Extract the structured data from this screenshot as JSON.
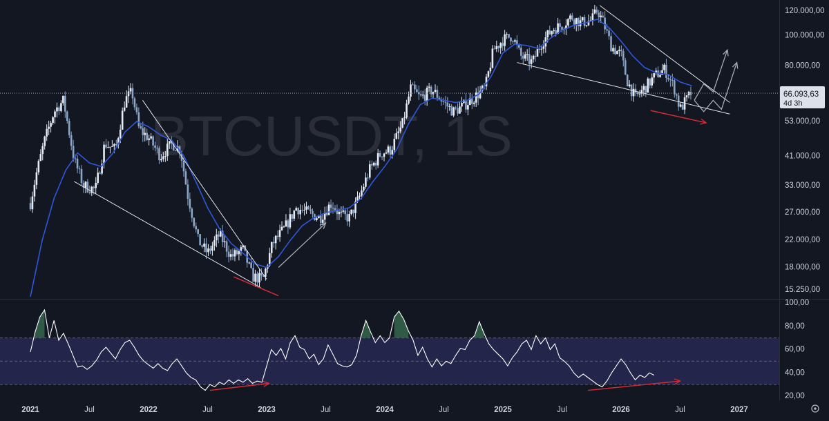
{
  "colors": {
    "background": "#131722",
    "up_candle": "#e6ecf5",
    "down_candle": "#8ba6c9",
    "moving_average": "#2f57d8",
    "trendline": "#e6e6e6",
    "projection": "#a8acb5",
    "divergence": "#d62b36",
    "rsi_line": "#ffffff",
    "rsi_band": "#2b2b58",
    "rsi_overbought_fill": "#36654c",
    "text": "#d1d4dc",
    "current_price_tag": "#dde2ea"
  },
  "watermark": "BTCUSDT, 1S",
  "current_price": {
    "value": "66.093,63",
    "countdown": "4d 3h",
    "level": 66093.63
  },
  "chart_data": [
    {
      "type": "candlestick",
      "scale": "log",
      "x_axis_labels": [
        "2021",
        "Jul",
        "2022",
        "Jul",
        "2023",
        "Jul",
        "2024",
        "Jul",
        "2025",
        "Jul",
        "2026",
        "Jul",
        "2027"
      ],
      "x_range": [
        2021.0,
        2027.0
      ],
      "y_ticks": [
        {
          "value": 120000,
          "label": "120.000,00"
        },
        {
          "value": 100000,
          "label": "100.000,00"
        },
        {
          "value": 80000,
          "label": "80.000,00"
        },
        {
          "value": 53000,
          "label": "53.000,00"
        },
        {
          "value": 41000,
          "label": "41.000,00"
        },
        {
          "value": 33000,
          "label": "33.000,00"
        },
        {
          "value": 27000,
          "label": "27.000,00"
        },
        {
          "value": 22000,
          "label": "22.000,00"
        },
        {
          "value": 18000,
          "label": "18.000,00"
        },
        {
          "value": 15250,
          "label": "15.250,00"
        }
      ],
      "price_path": [
        [
          2021.0,
          29000
        ],
        [
          2021.05,
          36000
        ],
        [
          2021.12,
          46000
        ],
        [
          2021.2,
          57000
        ],
        [
          2021.28,
          62000
        ],
        [
          2021.37,
          40000
        ],
        [
          2021.45,
          33000
        ],
        [
          2021.55,
          32000
        ],
        [
          2021.63,
          45000
        ],
        [
          2021.72,
          43000
        ],
        [
          2021.8,
          62000
        ],
        [
          2021.86,
          66000
        ],
        [
          2021.92,
          50000
        ],
        [
          2022.0,
          47000
        ],
        [
          2022.1,
          41000
        ],
        [
          2022.2,
          45000
        ],
        [
          2022.27,
          43000
        ],
        [
          2022.33,
          31000
        ],
        [
          2022.42,
          22000
        ],
        [
          2022.5,
          20000
        ],
        [
          2022.6,
          23000
        ],
        [
          2022.7,
          19500
        ],
        [
          2022.8,
          20500
        ],
        [
          2022.88,
          16800
        ],
        [
          2022.97,
          16500
        ],
        [
          2023.05,
          21500
        ],
        [
          2023.15,
          24000
        ],
        [
          2023.25,
          28000
        ],
        [
          2023.35,
          27000
        ],
        [
          2023.45,
          26000
        ],
        [
          2023.55,
          29000
        ],
        [
          2023.62,
          26500
        ],
        [
          2023.7,
          26000
        ],
        [
          2023.78,
          30000
        ],
        [
          2023.87,
          37000
        ],
        [
          2023.97,
          42000
        ],
        [
          2024.05,
          43000
        ],
        [
          2024.15,
          52000
        ],
        [
          2024.22,
          68000
        ],
        [
          2024.3,
          63000
        ],
        [
          2024.4,
          67000
        ],
        [
          2024.5,
          61000
        ],
        [
          2024.58,
          57000
        ],
        [
          2024.65,
          59000
        ],
        [
          2024.75,
          63000
        ],
        [
          2024.85,
          68000
        ],
        [
          2024.92,
          90000
        ],
        [
          2025.0,
          97000
        ],
        [
          2025.08,
          100000
        ],
        [
          2025.15,
          86000
        ],
        [
          2025.25,
          82000
        ],
        [
          2025.32,
          94000
        ],
        [
          2025.42,
          105000
        ],
        [
          2025.5,
          108000
        ],
        [
          2025.58,
          115000
        ],
        [
          2025.66,
          110000
        ],
        [
          2025.75,
          112000
        ],
        [
          2025.8,
          121000
        ],
        [
          2025.85,
          110000
        ],
        [
          2025.92,
          92000
        ],
        [
          2026.0,
          87000
        ],
        [
          2026.05,
          72000
        ],
        [
          2026.12,
          63000
        ],
        [
          2026.2,
          68000
        ],
        [
          2026.3,
          75000
        ],
        [
          2026.37,
          78000
        ],
        [
          2026.45,
          68000
        ],
        [
          2026.5,
          58000
        ],
        [
          2026.55,
          62000
        ],
        [
          2026.6,
          66093
        ]
      ],
      "moving_average": [
        [
          2021.0,
          14500
        ],
        [
          2021.1,
          22000
        ],
        [
          2021.2,
          30000
        ],
        [
          2021.3,
          37000
        ],
        [
          2021.4,
          42000
        ],
        [
          2021.5,
          39000
        ],
        [
          2021.6,
          38000
        ],
        [
          2021.7,
          42000
        ],
        [
          2021.8,
          49000
        ],
        [
          2021.9,
          53000
        ],
        [
          2022.0,
          51000
        ],
        [
          2022.1,
          48000
        ],
        [
          2022.2,
          46000
        ],
        [
          2022.3,
          41000
        ],
        [
          2022.4,
          34000
        ],
        [
          2022.5,
          28000
        ],
        [
          2022.6,
          24000
        ],
        [
          2022.7,
          21500
        ],
        [
          2022.8,
          20000
        ],
        [
          2022.9,
          18500
        ],
        [
          2023.0,
          18000
        ],
        [
          2023.1,
          19500
        ],
        [
          2023.2,
          22000
        ],
        [
          2023.3,
          24500
        ],
        [
          2023.4,
          26000
        ],
        [
          2023.5,
          27000
        ],
        [
          2023.6,
          27500
        ],
        [
          2023.7,
          28000
        ],
        [
          2023.8,
          30000
        ],
        [
          2023.9,
          34000
        ],
        [
          2024.0,
          38000
        ],
        [
          2024.1,
          43000
        ],
        [
          2024.2,
          52000
        ],
        [
          2024.3,
          60000
        ],
        [
          2024.4,
          63000
        ],
        [
          2024.5,
          62000
        ],
        [
          2024.6,
          61000
        ],
        [
          2024.7,
          62000
        ],
        [
          2024.8,
          65000
        ],
        [
          2024.9,
          74000
        ],
        [
          2025.0,
          88000
        ],
        [
          2025.1,
          94000
        ],
        [
          2025.2,
          93000
        ],
        [
          2025.3,
          91000
        ],
        [
          2025.4,
          98000
        ],
        [
          2025.5,
          104000
        ],
        [
          2025.6,
          108000
        ],
        [
          2025.7,
          110000
        ],
        [
          2025.8,
          113000
        ],
        [
          2025.9,
          106000
        ],
        [
          2026.0,
          96000
        ],
        [
          2026.1,
          86000
        ],
        [
          2026.2,
          79000
        ],
        [
          2026.3,
          76000
        ],
        [
          2026.4,
          75000
        ],
        [
          2026.5,
          71000
        ],
        [
          2026.6,
          69000
        ]
      ],
      "trendlines": [
        {
          "from": [
            2021.37,
            34000
          ],
          "to": [
            2022.95,
            15500
          ]
        },
        {
          "from": [
            2021.95,
            62000
          ],
          "to": [
            2023.0,
            16500
          ]
        },
        {
          "from": [
            2025.12,
            82000
          ],
          "to": [
            2026.92,
            56000
          ]
        },
        {
          "from": [
            2025.82,
            125000
          ],
          "to": [
            2026.92,
            61000
          ]
        }
      ],
      "projections": [
        {
          "from": [
            2023.1,
            18000
          ],
          "to": [
            2023.5,
            25000
          ]
        },
        {
          "points": [
            [
              2026.62,
              62000
            ],
            [
              2026.7,
              70000
            ],
            [
              2026.78,
              66000
            ],
            [
              2026.9,
              90000
            ]
          ]
        },
        {
          "points": [
            [
              2026.62,
              62000
            ],
            [
              2026.7,
              57000
            ],
            [
              2026.78,
              62000
            ],
            [
              2026.85,
              58000
            ],
            [
              2026.98,
              82000
            ]
          ]
        }
      ],
      "divergences": [
        {
          "from": [
            2022.72,
            16800
          ],
          "to": [
            2023.1,
            14600
          ]
        },
        {
          "from": [
            2026.25,
            57500
          ],
          "to": [
            2026.72,
            52500
          ]
        }
      ]
    },
    {
      "type": "line",
      "y_ticks": [
        {
          "value": 100,
          "label": "100,00"
        },
        {
          "value": 80,
          "label": "80,00"
        },
        {
          "value": 60,
          "label": "60,00"
        },
        {
          "value": 40,
          "label": "40,00"
        },
        {
          "value": 20,
          "label": "20,00"
        }
      ],
      "ylim": [
        20,
        100
      ],
      "band": [
        30,
        70
      ],
      "midline": 50,
      "values": [
        [
          2021.0,
          58
        ],
        [
          2021.04,
          75
        ],
        [
          2021.08,
          88
        ],
        [
          2021.12,
          94
        ],
        [
          2021.16,
          70
        ],
        [
          2021.2,
          85
        ],
        [
          2021.24,
          68
        ],
        [
          2021.28,
          74
        ],
        [
          2021.32,
          65
        ],
        [
          2021.36,
          55
        ],
        [
          2021.4,
          45
        ],
        [
          2021.44,
          46
        ],
        [
          2021.48,
          43
        ],
        [
          2021.52,
          46
        ],
        [
          2021.56,
          51
        ],
        [
          2021.6,
          58
        ],
        [
          2021.64,
          62
        ],
        [
          2021.68,
          57
        ],
        [
          2021.72,
          52
        ],
        [
          2021.76,
          60
        ],
        [
          2021.8,
          66
        ],
        [
          2021.84,
          68
        ],
        [
          2021.88,
          62
        ],
        [
          2021.92,
          55
        ],
        [
          2021.96,
          50
        ],
        [
          2022.0,
          47
        ],
        [
          2022.04,
          44
        ],
        [
          2022.08,
          48
        ],
        [
          2022.12,
          44
        ],
        [
          2022.16,
          42
        ],
        [
          2022.2,
          48
        ],
        [
          2022.24,
          52
        ],
        [
          2022.28,
          46
        ],
        [
          2022.32,
          40
        ],
        [
          2022.36,
          36
        ],
        [
          2022.4,
          34
        ],
        [
          2022.44,
          28
        ],
        [
          2022.48,
          25
        ],
        [
          2022.52,
          30
        ],
        [
          2022.56,
          28
        ],
        [
          2022.6,
          32
        ],
        [
          2022.64,
          30
        ],
        [
          2022.68,
          34
        ],
        [
          2022.72,
          31
        ],
        [
          2022.76,
          34
        ],
        [
          2022.8,
          32
        ],
        [
          2022.84,
          35
        ],
        [
          2022.88,
          31
        ],
        [
          2022.92,
          33
        ],
        [
          2022.96,
          32
        ],
        [
          2023.0,
          46
        ],
        [
          2023.04,
          60
        ],
        [
          2023.08,
          55
        ],
        [
          2023.12,
          61
        ],
        [
          2023.16,
          52
        ],
        [
          2023.2,
          66
        ],
        [
          2023.24,
          72
        ],
        [
          2023.28,
          62
        ],
        [
          2023.32,
          60
        ],
        [
          2023.36,
          52
        ],
        [
          2023.4,
          56
        ],
        [
          2023.44,
          47
        ],
        [
          2023.48,
          52
        ],
        [
          2023.52,
          64
        ],
        [
          2023.56,
          56
        ],
        [
          2023.6,
          48
        ],
        [
          2023.64,
          46
        ],
        [
          2023.68,
          45
        ],
        [
          2023.72,
          47
        ],
        [
          2023.76,
          55
        ],
        [
          2023.8,
          72
        ],
        [
          2023.84,
          85
        ],
        [
          2023.88,
          75
        ],
        [
          2023.92,
          66
        ],
        [
          2023.96,
          72
        ],
        [
          2024.0,
          66
        ],
        [
          2024.04,
          70
        ],
        [
          2024.08,
          88
        ],
        [
          2024.12,
          93
        ],
        [
          2024.16,
          86
        ],
        [
          2024.2,
          76
        ],
        [
          2024.24,
          68
        ],
        [
          2024.28,
          55
        ],
        [
          2024.32,
          62
        ],
        [
          2024.36,
          52
        ],
        [
          2024.4,
          45
        ],
        [
          2024.44,
          52
        ],
        [
          2024.48,
          46
        ],
        [
          2024.52,
          50
        ],
        [
          2024.56,
          48
        ],
        [
          2024.6,
          55
        ],
        [
          2024.64,
          61
        ],
        [
          2024.68,
          60
        ],
        [
          2024.72,
          68
        ],
        [
          2024.76,
          72
        ],
        [
          2024.8,
          84
        ],
        [
          2024.84,
          74
        ],
        [
          2024.88,
          65
        ],
        [
          2024.92,
          60
        ],
        [
          2024.96,
          56
        ],
        [
          2025.0,
          52
        ],
        [
          2025.04,
          46
        ],
        [
          2025.08,
          53
        ],
        [
          2025.12,
          58
        ],
        [
          2025.16,
          65
        ],
        [
          2025.2,
          68
        ],
        [
          2025.24,
          60
        ],
        [
          2025.28,
          72
        ],
        [
          2025.32,
          65
        ],
        [
          2025.36,
          70
        ],
        [
          2025.4,
          60
        ],
        [
          2025.44,
          65
        ],
        [
          2025.48,
          53
        ],
        [
          2025.52,
          50
        ],
        [
          2025.56,
          46
        ],
        [
          2025.6,
          40
        ],
        [
          2025.64,
          36
        ],
        [
          2025.68,
          39
        ],
        [
          2025.72,
          36
        ],
        [
          2025.76,
          33
        ],
        [
          2025.8,
          30
        ],
        [
          2025.84,
          28
        ],
        [
          2025.88,
          33
        ],
        [
          2025.92,
          40
        ],
        [
          2025.96,
          46
        ],
        [
          2026.0,
          52
        ],
        [
          2026.04,
          47
        ],
        [
          2026.08,
          40
        ],
        [
          2026.12,
          34
        ],
        [
          2026.16,
          38
        ],
        [
          2026.2,
          36
        ],
        [
          2026.24,
          40
        ],
        [
          2026.28,
          38
        ]
      ],
      "divergences": [
        {
          "from": [
            2022.52,
            25
          ],
          "to": [
            2023.02,
            31
          ]
        },
        {
          "from": [
            2025.72,
            25
          ],
          "to": [
            2026.5,
            33
          ]
        }
      ]
    }
  ]
}
